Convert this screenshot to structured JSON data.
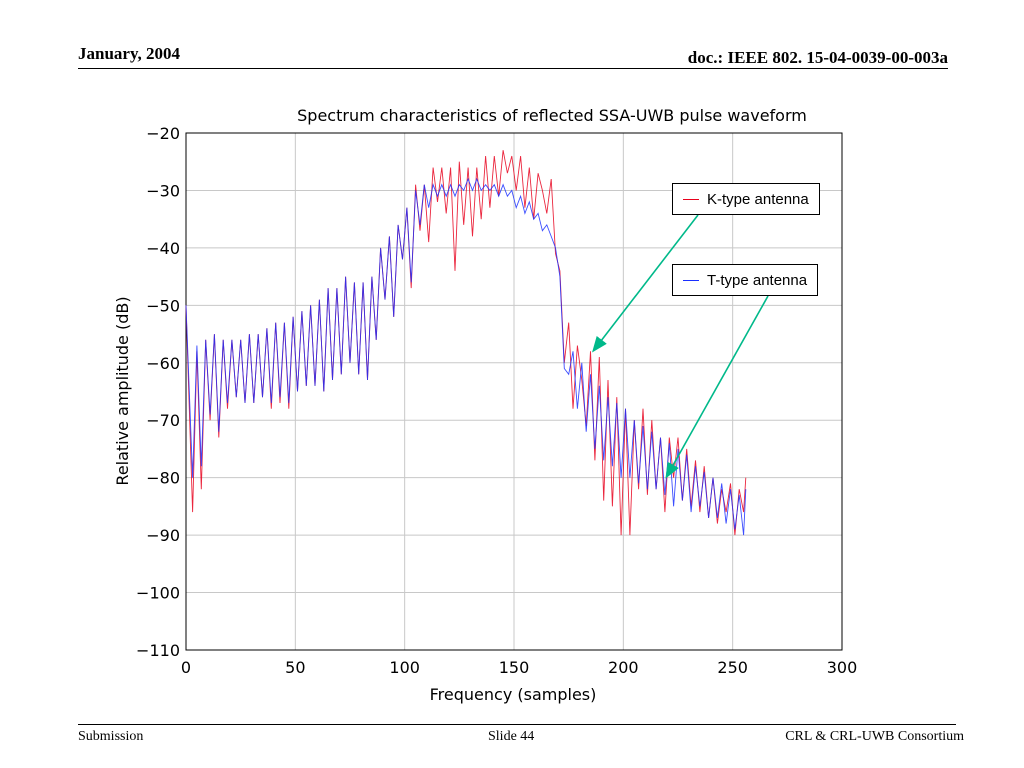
{
  "header": {
    "date": "January, 2004",
    "doc": "doc.: IEEE 802. 15-04-0039-00-003a"
  },
  "footer": {
    "left": "Submission",
    "slide": "Slide 44",
    "org": "CRL & CRL-UWB Consortium"
  },
  "colors": {
    "k_type": "#e8001c",
    "t_type": "#1a2fff",
    "arrow": "#00b98a"
  },
  "chart_data": {
    "type": "line",
    "title": "Spectrum characteristics of reflected SSA-UWB pulse waveform",
    "xlabel": "Frequency (samples)",
    "ylabel": "Relative amplitude (dB)",
    "xlim": [
      0,
      300
    ],
    "ylim": [
      -110,
      -20
    ],
    "xticks": [
      0,
      50,
      100,
      150,
      200,
      250,
      300
    ],
    "yticks": [
      -20,
      -30,
      -40,
      -50,
      -60,
      -70,
      -80,
      -90,
      -100,
      -110
    ],
    "grid": true,
    "legend_placement": "right, inside plot",
    "series": [
      {
        "name": "K-type antenna",
        "color": "#e8001c",
        "points": [
          [
            0,
            -50
          ],
          [
            3,
            -86
          ],
          [
            5,
            -58
          ],
          [
            7,
            -82
          ],
          [
            9,
            -56
          ],
          [
            11,
            -70
          ],
          [
            13,
            -55
          ],
          [
            15,
            -73
          ],
          [
            17,
            -56
          ],
          [
            19,
            -68
          ],
          [
            21,
            -56
          ],
          [
            23,
            -66
          ],
          [
            25,
            -56
          ],
          [
            27,
            -67
          ],
          [
            29,
            -55
          ],
          [
            31,
            -67
          ],
          [
            33,
            -55
          ],
          [
            35,
            -66
          ],
          [
            37,
            -54
          ],
          [
            39,
            -68
          ],
          [
            41,
            -53
          ],
          [
            43,
            -67
          ],
          [
            45,
            -53
          ],
          [
            47,
            -68
          ],
          [
            49,
            -52
          ],
          [
            51,
            -65
          ],
          [
            53,
            -51
          ],
          [
            55,
            -64
          ],
          [
            57,
            -50
          ],
          [
            59,
            -64
          ],
          [
            61,
            -49
          ],
          [
            63,
            -65
          ],
          [
            65,
            -47
          ],
          [
            67,
            -63
          ],
          [
            69,
            -47
          ],
          [
            71,
            -62
          ],
          [
            73,
            -45
          ],
          [
            75,
            -60
          ],
          [
            77,
            -46
          ],
          [
            79,
            -62
          ],
          [
            81,
            -46
          ],
          [
            83,
            -63
          ],
          [
            85,
            -45
          ],
          [
            87,
            -56
          ],
          [
            89,
            -40
          ],
          [
            91,
            -49
          ],
          [
            93,
            -38
          ],
          [
            95,
            -52
          ],
          [
            97,
            -36
          ],
          [
            99,
            -42
          ],
          [
            101,
            -33
          ],
          [
            103,
            -47
          ],
          [
            105,
            -29
          ],
          [
            107,
            -37
          ],
          [
            109,
            -29
          ],
          [
            111,
            -39
          ],
          [
            113,
            -26
          ],
          [
            115,
            -32
          ],
          [
            117,
            -26
          ],
          [
            119,
            -34
          ],
          [
            121,
            -26
          ],
          [
            123,
            -44
          ],
          [
            125,
            -25
          ],
          [
            127,
            -36
          ],
          [
            129,
            -26
          ],
          [
            131,
            -38
          ],
          [
            133,
            -26
          ],
          [
            135,
            -35
          ],
          [
            137,
            -24
          ],
          [
            139,
            -33
          ],
          [
            141,
            -24
          ],
          [
            143,
            -31
          ],
          [
            145,
            -23
          ],
          [
            147,
            -27
          ],
          [
            149,
            -24
          ],
          [
            151,
            -30
          ],
          [
            153,
            -24
          ],
          [
            155,
            -33
          ],
          [
            157,
            -26
          ],
          [
            159,
            -35
          ],
          [
            161,
            -27
          ],
          [
            163,
            -30
          ],
          [
            165,
            -34
          ],
          [
            167,
            -28
          ],
          [
            169,
            -41
          ],
          [
            171,
            -44
          ],
          [
            173,
            -60
          ],
          [
            175,
            -53
          ],
          [
            177,
            -68
          ],
          [
            179,
            -57
          ],
          [
            181,
            -63
          ],
          [
            183,
            -71
          ],
          [
            185,
            -58
          ],
          [
            187,
            -77
          ],
          [
            189,
            -59
          ],
          [
            191,
            -84
          ],
          [
            193,
            -63
          ],
          [
            195,
            -85
          ],
          [
            197,
            -66
          ],
          [
            199,
            -90
          ],
          [
            201,
            -68
          ],
          [
            203,
            -90
          ],
          [
            205,
            -70
          ],
          [
            207,
            -82
          ],
          [
            209,
            -68
          ],
          [
            211,
            -83
          ],
          [
            213,
            -70
          ],
          [
            215,
            -82
          ],
          [
            217,
            -73
          ],
          [
            219,
            -86
          ],
          [
            221,
            -73
          ],
          [
            223,
            -80
          ],
          [
            225,
            -73
          ],
          [
            227,
            -84
          ],
          [
            229,
            -75
          ],
          [
            231,
            -85
          ],
          [
            233,
            -77
          ],
          [
            235,
            -86
          ],
          [
            237,
            -78
          ],
          [
            239,
            -87
          ],
          [
            241,
            -80
          ],
          [
            243,
            -88
          ],
          [
            245,
            -82
          ],
          [
            247,
            -86
          ],
          [
            249,
            -81
          ],
          [
            251,
            -90
          ],
          [
            253,
            -82
          ],
          [
            255,
            -86
          ],
          [
            256,
            -80
          ]
        ]
      },
      {
        "name": "T-type antenna",
        "color": "#1a2fff",
        "points": [
          [
            0,
            -50
          ],
          [
            3,
            -80
          ],
          [
            5,
            -57
          ],
          [
            7,
            -78
          ],
          [
            9,
            -56
          ],
          [
            11,
            -69
          ],
          [
            13,
            -55
          ],
          [
            15,
            -72
          ],
          [
            17,
            -56
          ],
          [
            19,
            -67
          ],
          [
            21,
            -56
          ],
          [
            23,
            -66
          ],
          [
            25,
            -56
          ],
          [
            27,
            -67
          ],
          [
            29,
            -55
          ],
          [
            31,
            -67
          ],
          [
            33,
            -55
          ],
          [
            35,
            -66
          ],
          [
            37,
            -54
          ],
          [
            39,
            -67
          ],
          [
            41,
            -53
          ],
          [
            43,
            -66
          ],
          [
            45,
            -53
          ],
          [
            47,
            -67
          ],
          [
            49,
            -52
          ],
          [
            51,
            -65
          ],
          [
            53,
            -51
          ],
          [
            55,
            -64
          ],
          [
            57,
            -50
          ],
          [
            59,
            -64
          ],
          [
            61,
            -49
          ],
          [
            63,
            -65
          ],
          [
            65,
            -47
          ],
          [
            67,
            -63
          ],
          [
            69,
            -47
          ],
          [
            71,
            -62
          ],
          [
            73,
            -45
          ],
          [
            75,
            -60
          ],
          [
            77,
            -46
          ],
          [
            79,
            -62
          ],
          [
            81,
            -46
          ],
          [
            83,
            -63
          ],
          [
            85,
            -45
          ],
          [
            87,
            -56
          ],
          [
            89,
            -40
          ],
          [
            91,
            -49
          ],
          [
            93,
            -38
          ],
          [
            95,
            -52
          ],
          [
            97,
            -36
          ],
          [
            99,
            -42
          ],
          [
            101,
            -33
          ],
          [
            103,
            -46
          ],
          [
            105,
            -30
          ],
          [
            107,
            -36
          ],
          [
            109,
            -29
          ],
          [
            111,
            -33
          ],
          [
            113,
            -29
          ],
          [
            115,
            -31
          ],
          [
            117,
            -29
          ],
          [
            119,
            -31
          ],
          [
            121,
            -29
          ],
          [
            123,
            -31
          ],
          [
            125,
            -29
          ],
          [
            127,
            -30
          ],
          [
            129,
            -28
          ],
          [
            131,
            -30
          ],
          [
            133,
            -28
          ],
          [
            135,
            -30
          ],
          [
            137,
            -29
          ],
          [
            139,
            -30
          ],
          [
            141,
            -29
          ],
          [
            143,
            -31
          ],
          [
            145,
            -29
          ],
          [
            147,
            -31
          ],
          [
            149,
            -30
          ],
          [
            151,
            -33
          ],
          [
            153,
            -31
          ],
          [
            155,
            -34
          ],
          [
            157,
            -32
          ],
          [
            159,
            -35
          ],
          [
            161,
            -34
          ],
          [
            163,
            -37
          ],
          [
            165,
            -36
          ],
          [
            167,
            -38
          ],
          [
            169,
            -40
          ],
          [
            171,
            -45
          ],
          [
            173,
            -61
          ],
          [
            175,
            -62
          ],
          [
            177,
            -58
          ],
          [
            179,
            -68
          ],
          [
            181,
            -60
          ],
          [
            183,
            -72
          ],
          [
            185,
            -62
          ],
          [
            187,
            -75
          ],
          [
            189,
            -64
          ],
          [
            191,
            -77
          ],
          [
            193,
            -66
          ],
          [
            195,
            -78
          ],
          [
            197,
            -67
          ],
          [
            199,
            -80
          ],
          [
            201,
            -68
          ],
          [
            203,
            -80
          ],
          [
            205,
            -70
          ],
          [
            207,
            -81
          ],
          [
            209,
            -71
          ],
          [
            211,
            -82
          ],
          [
            213,
            -72
          ],
          [
            215,
            -82
          ],
          [
            217,
            -73
          ],
          [
            219,
            -83
          ],
          [
            221,
            -74
          ],
          [
            223,
            -85
          ],
          [
            225,
            -75
          ],
          [
            227,
            -84
          ],
          [
            229,
            -76
          ],
          [
            231,
            -86
          ],
          [
            233,
            -78
          ],
          [
            235,
            -85
          ],
          [
            237,
            -79
          ],
          [
            239,
            -87
          ],
          [
            241,
            -80
          ],
          [
            243,
            -87
          ],
          [
            245,
            -81
          ],
          [
            247,
            -88
          ],
          [
            249,
            -82
          ],
          [
            251,
            -89
          ],
          [
            253,
            -83
          ],
          [
            255,
            -90
          ],
          [
            256,
            -82
          ]
        ]
      }
    ]
  }
}
